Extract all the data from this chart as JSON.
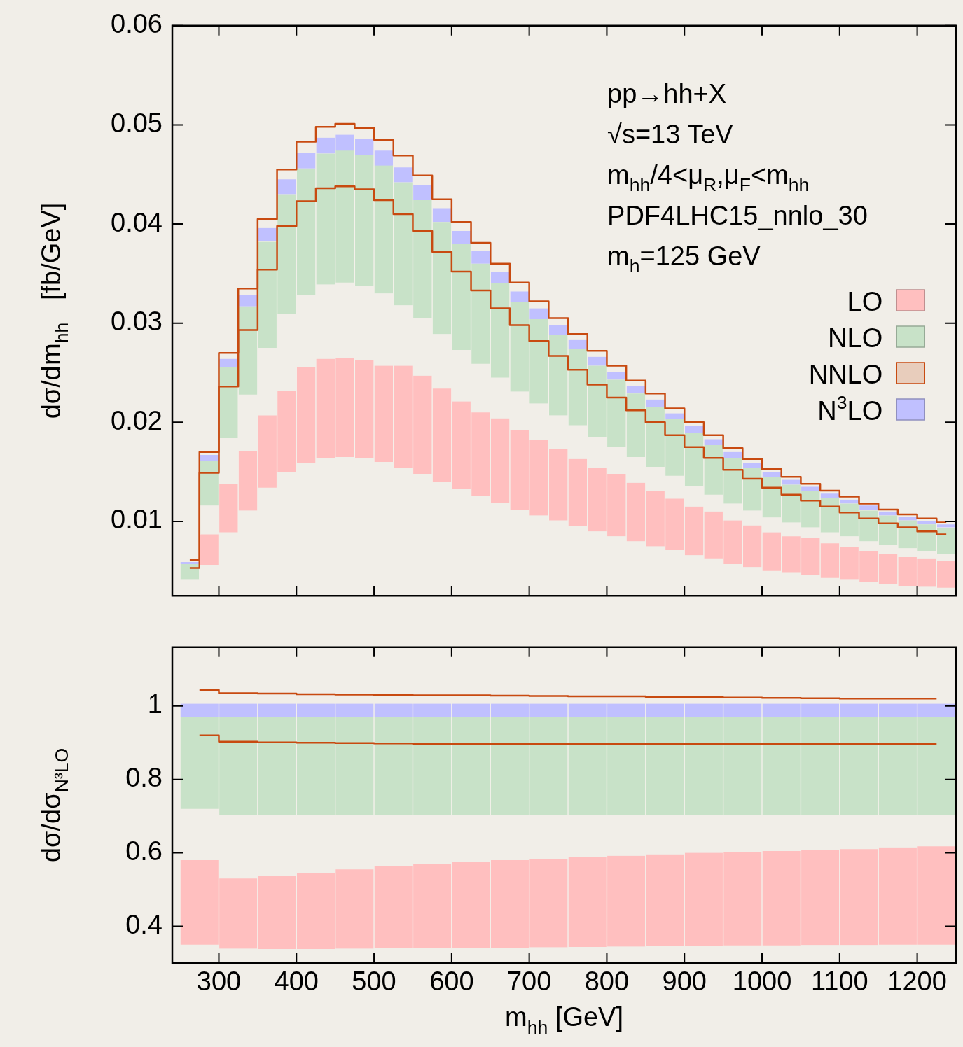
{
  "chart_data": [
    {
      "type": "bar",
      "ylabel": "dσ/dm$_{hh}$   [fb/GeV]",
      "annotations": [
        "pp→hh+X",
        "√s=13 TeV",
        "m$_{hh}$/4<μ$_{R}$,μ$_{F}$<m$_{hh}$",
        "PDF4LHC15_nnlo_30",
        "m$_{h}$=125 GeV"
      ],
      "x": [
        262.5,
        287.5,
        312.5,
        337.5,
        362.5,
        387.5,
        412.5,
        437.5,
        462.5,
        487.5,
        512.5,
        537.5,
        562.5,
        587.5,
        612.5,
        637.5,
        662.5,
        687.5,
        712.5,
        737.5,
        762.5,
        787.5,
        812.5,
        837.5,
        862.5,
        887.5,
        912.5,
        937.5,
        962.5,
        987.5,
        1012.5,
        1037.5,
        1062.5,
        1087.5,
        1112.5,
        1137.5,
        1162.5,
        1187.5,
        1212.5,
        1237.5
      ],
      "series": [
        {
          "name": "LO",
          "color": "#ffbfbf",
          "base": [
            null,
            0.0056,
            0.0089,
            0.0111,
            0.0134,
            0.015,
            0.0159,
            0.0164,
            0.0165,
            0.0164,
            0.016,
            0.0154,
            0.0148,
            0.014,
            0.0133,
            0.0126,
            0.0119,
            0.0112,
            0.0106,
            0.0101,
            0.0095,
            0.009,
            0.0085,
            0.008,
            0.0075,
            0.0071,
            0.0066,
            0.0062,
            0.0057,
            0.0054,
            0.005,
            0.0048,
            0.0046,
            0.0043,
            0.0041,
            0.0039,
            0.0037,
            0.0035,
            0.0034,
            0.0033
          ],
          "values": [
            null,
            0.0031,
            0.0049,
            0.006,
            0.0073,
            0.0082,
            0.0097,
            0.01,
            0.01,
            0.0099,
            0.0097,
            0.0103,
            0.0099,
            0.0094,
            0.0088,
            0.0084,
            0.0085,
            0.008,
            0.0076,
            0.0072,
            0.0068,
            0.0064,
            0.0063,
            0.0059,
            0.0056,
            0.0052,
            0.0049,
            0.0048,
            0.0044,
            0.0042,
            0.0039,
            0.0037,
            0.0037,
            0.0035,
            0.0033,
            0.0031,
            0.003,
            0.0029,
            0.0028,
            0.0027
          ]
        },
        {
          "name": "NLO",
          "color": "#c8e2c8",
          "base": [
            0.0041,
            0.0116,
            0.0184,
            0.0228,
            0.0275,
            0.0309,
            0.0328,
            0.0339,
            0.0341,
            0.0338,
            0.033,
            0.0318,
            0.0305,
            0.0289,
            0.0273,
            0.0259,
            0.0245,
            0.0231,
            0.0219,
            0.0207,
            0.0197,
            0.0185,
            0.0175,
            0.0165,
            0.0155,
            0.0146,
            0.0136,
            0.0127,
            0.0118,
            0.0111,
            0.0104,
            0.0099,
            0.0094,
            0.0089,
            0.0085,
            0.008,
            0.0076,
            0.0073,
            0.007,
            0.0067
          ],
          "values": [
            0.0016,
            0.0045,
            0.0072,
            0.0089,
            0.0107,
            0.0121,
            0.0128,
            0.0132,
            0.0133,
            0.0132,
            0.0129,
            0.0124,
            0.0119,
            0.0113,
            0.0107,
            0.0101,
            0.0095,
            0.009,
            0.0085,
            0.0081,
            0.0077,
            0.0072,
            0.0068,
            0.0064,
            0.006,
            0.0057,
            0.0053,
            0.005,
            0.0046,
            0.0043,
            0.0041,
            0.0038,
            0.0037,
            0.0035,
            0.0033,
            0.0031,
            0.003,
            0.0028,
            0.0027,
            0.0026
          ]
        },
        {
          "type": "step",
          "color": "#c84a10",
          "values": [
            0.0053,
            0.0149,
            0.0236,
            0.0293,
            0.0354,
            0.0398,
            0.0423,
            0.0436,
            0.0438,
            0.0435,
            0.0424,
            0.041,
            0.0393,
            0.0372,
            0.0352,
            0.0333,
            0.0315,
            0.0298,
            0.0282,
            0.0267,
            0.0253,
            0.0238,
            0.0225,
            0.0212,
            0.02,
            0.0187,
            0.0175,
            0.0164,
            0.0152,
            0.0143,
            0.0134,
            0.0127,
            0.0121,
            0.0115,
            0.0109,
            0.0103,
            0.0098,
            0.0094,
            0.009,
            0.0087
          ]
        },
        {
          "name": "NNLO",
          "type": "step",
          "color": "#c84a10",
          "values": [
            0.0061,
            0.017,
            0.027,
            0.0335,
            0.0405,
            0.0455,
            0.0483,
            0.0498,
            0.0501,
            0.0497,
            0.0485,
            0.0469,
            0.0449,
            0.0425,
            0.0402,
            0.0381,
            0.036,
            0.0341,
            0.0322,
            0.0305,
            0.0289,
            0.0272,
            0.0257,
            0.0242,
            0.0229,
            0.0214,
            0.02,
            0.0187,
            0.0174,
            0.0163,
            0.0153,
            0.0145,
            0.0138,
            0.0131,
            0.0125,
            0.0118,
            0.0112,
            0.0107,
            0.0103,
            0.0099
          ]
        },
        {
          "name": "N$^{3}$LO",
          "color": "#c0c0ff",
          "base": [
            0.0057,
            0.0161,
            0.0255,
            0.0317,
            0.0383,
            0.043,
            0.0456,
            0.0471,
            0.0473,
            0.047,
            0.0458,
            0.0442,
            0.0424,
            0.0402,
            0.038,
            0.036,
            0.034,
            0.0321,
            0.0304,
            0.0288,
            0.0273,
            0.0257,
            0.0243,
            0.0229,
            0.0215,
            0.0202,
            0.0189,
            0.0177,
            0.0164,
            0.0154,
            0.0145,
            0.0137,
            0.013,
            0.0124,
            0.0118,
            0.0112,
            0.0106,
            0.0101,
            0.0097,
            0.0094
          ],
          "values": [
            0.0002,
            0.0006,
            0.0009,
            0.0011,
            0.0013,
            0.0015,
            0.0016,
            0.0016,
            0.0017,
            0.0016,
            0.0016,
            0.0015,
            0.0015,
            0.0014,
            0.0013,
            0.0013,
            0.0012,
            0.0011,
            0.0011,
            0.001,
            0.001,
            0.0009,
            0.0008,
            0.0008,
            0.0008,
            0.0007,
            0.0007,
            0.0006,
            0.0006,
            0.0005,
            0.0005,
            0.0005,
            0.0005,
            0.0004,
            0.0004,
            0.0004,
            0.0004,
            0.0004,
            0.0003,
            0.0003
          ]
        }
      ],
      "xlim": [
        240,
        1250
      ],
      "xticks": [
        300,
        400,
        500,
        600,
        700,
        800,
        900,
        1000,
        1100,
        1200
      ],
      "ylim": [
        0.0025,
        0.06
      ],
      "yticks": [
        0.01,
        0.02,
        0.03,
        0.04,
        0.05,
        0.06
      ],
      "tick_labels": "y",
      "legend": "right"
    },
    {
      "type": "bar",
      "xlabel": "m$_{hh}$ [GeV]",
      "ylabel": "dσ/dσ$_{N³LO}$",
      "x": [
        275,
        325,
        375,
        425,
        475,
        525,
        575,
        625,
        675,
        725,
        775,
        825,
        875,
        925,
        975,
        1025,
        1075,
        1125,
        1175,
        1225
      ],
      "series": [
        {
          "color": "#ffbfbf",
          "base": [
            0.35,
            0.339,
            0.338,
            0.338,
            0.339,
            0.34,
            0.341,
            0.341,
            0.342,
            0.343,
            0.344,
            0.345,
            0.346,
            0.347,
            0.348,
            0.348,
            0.349,
            0.349,
            0.35,
            0.35
          ],
          "values": [
            0.23,
            0.191,
            0.199,
            0.207,
            0.216,
            0.223,
            0.229,
            0.234,
            0.238,
            0.241,
            0.244,
            0.247,
            0.25,
            0.253,
            0.255,
            0.257,
            0.259,
            0.261,
            0.265,
            0.268
          ]
        },
        {
          "color": "#c8e2c8",
          "base": [
            0.72,
            0.703,
            0.703,
            0.703,
            0.703,
            0.703,
            0.703,
            0.703,
            0.703,
            0.703,
            0.703,
            0.703,
            0.703,
            0.703,
            0.703,
            0.703,
            0.703,
            0.703,
            0.703,
            0.703
          ],
          "values": [
            0.251,
            0.268,
            0.268,
            0.268,
            0.268,
            0.268,
            0.268,
            0.268,
            0.268,
            0.268,
            0.268,
            0.268,
            0.268,
            0.268,
            0.268,
            0.268,
            0.268,
            0.268,
            0.268,
            0.268
          ]
        },
        {
          "type": "step",
          "color": "#c84a10",
          "values": [
            0.92,
            0.903,
            0.901,
            0.9,
            0.899,
            0.898,
            0.897,
            0.897,
            0.897,
            0.897,
            0.897,
            0.897,
            0.897,
            0.897,
            0.897,
            0.897,
            0.897,
            0.897,
            0.897,
            0.897
          ]
        },
        {
          "type": "step",
          "color": "#c84a10",
          "values": [
            1.044,
            1.035,
            1.034,
            1.032,
            1.031,
            1.03,
            1.029,
            1.029,
            1.028,
            1.027,
            1.026,
            1.026,
            1.025,
            1.024,
            1.023,
            1.022,
            1.021,
            1.02,
            1.02,
            1.02
          ]
        },
        {
          "color": "#c0c0ff",
          "base": [
            0.971,
            0.971,
            0.971,
            0.971,
            0.971,
            0.971,
            0.971,
            0.971,
            0.971,
            0.971,
            0.971,
            0.971,
            0.971,
            0.971,
            0.971,
            0.971,
            0.971,
            0.971,
            0.971,
            0.971
          ],
          "values": [
            0.035,
            0.035,
            0.035,
            0.035,
            0.035,
            0.035,
            0.035,
            0.035,
            0.035,
            0.035,
            0.035,
            0.035,
            0.035,
            0.035,
            0.035,
            0.035,
            0.035,
            0.035,
            0.035,
            0.035
          ]
        }
      ],
      "xlim": [
        240,
        1250
      ],
      "xticks": [
        300,
        400,
        500,
        600,
        700,
        800,
        900,
        1000,
        1100,
        1200
      ],
      "ylim": [
        0.3,
        1.16
      ],
      "yticks": [
        0.4,
        0.6,
        0.8,
        1
      ]
    }
  ]
}
